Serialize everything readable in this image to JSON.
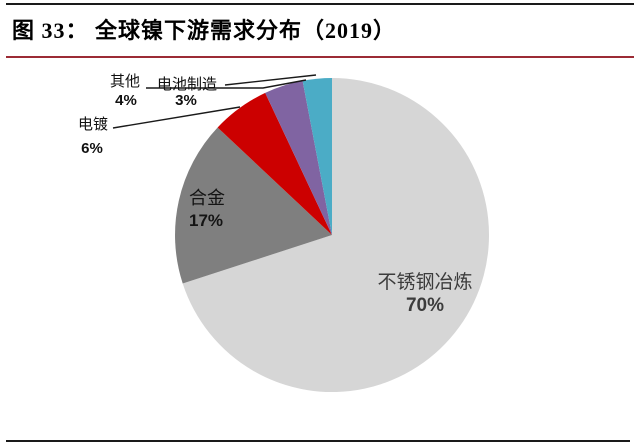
{
  "figure": {
    "title": "图 33： 全球镍下游需求分布（2019）"
  },
  "chart_data": {
    "type": "pie",
    "title": "全球镍下游需求分布（2019）",
    "unit": "percent",
    "direction": "clockwise",
    "start_angle_deg": 0,
    "legend": "none",
    "categories": [
      "不锈钢冶炼",
      "合金",
      "电镀",
      "其他",
      "电池制造"
    ],
    "values": [
      70,
      17,
      6,
      4,
      3
    ],
    "colors": [
      "#d6d6d6",
      "#7f7f7f",
      "#cc0000",
      "#8064a2",
      "#4bacc6"
    ],
    "labels": [
      {
        "name": "不锈钢冶炼",
        "pct": "70%",
        "placement": "inside"
      },
      {
        "name": "合金",
        "pct": "17%",
        "placement": "inside"
      },
      {
        "name": "电镀",
        "pct": "6%",
        "placement": "outside"
      },
      {
        "name": "其他",
        "pct": "4%",
        "placement": "outside"
      },
      {
        "name": "电池制造",
        "pct": "3%",
        "placement": "outside"
      }
    ]
  },
  "style": {
    "accent_rule_color": "#9c2b35",
    "border_rule_color": "#1a1a1a"
  }
}
